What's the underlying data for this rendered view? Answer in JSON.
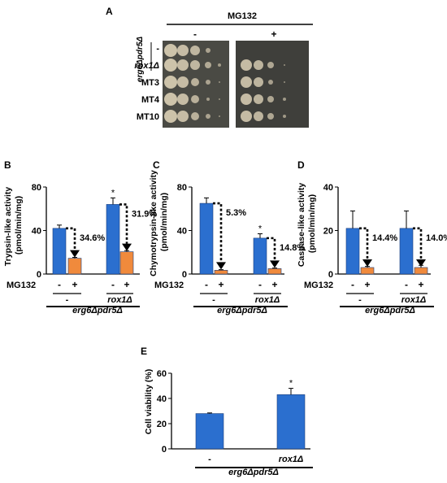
{
  "panels": {
    "A": {
      "letter": "A",
      "treatment_label": "MG132",
      "condition_minus": "-",
      "condition_plus": "+",
      "strain_label": "erg6Δpdr5Δ",
      "rows": [
        "-",
        "rox1Δ",
        "MT3",
        "MT4",
        "MT10"
      ]
    },
    "B": {
      "letter": "B",
      "group_label": "erg6Δpdr5Δ"
    },
    "C": {
      "letter": "C",
      "group_label": "erg6Δpdr5Δ"
    },
    "D": {
      "letter": "D",
      "group_label": "erg6Δpdr5Δ"
    },
    "E": {
      "letter": "E",
      "group_label": "erg6Δpdr5Δ"
    }
  },
  "colors": {
    "minus_bar": "#2b6fcf",
    "plus_bar": "#f08a3c",
    "colony": "#d4c9b0",
    "plate_bg": "#4a4a44"
  },
  "chart_data": [
    {
      "panel": "B",
      "type": "bar",
      "ylabel": "Trypsin-like activity\n(pmol/min/mg)",
      "ylim": [
        0,
        80
      ],
      "yticks": [
        "0",
        "40",
        "80"
      ],
      "xlabel_row": "MG132",
      "categories": [
        "-",
        "+",
        "-",
        "+"
      ],
      "groups": [
        "-",
        "rox1Δ"
      ],
      "values": [
        42,
        14.5,
        64,
        20.5
      ],
      "errors": [
        3,
        0.8,
        6,
        1
      ],
      "colors": [
        "#2b6fcf",
        "#f08a3c",
        "#2b6fcf",
        "#f08a3c"
      ],
      "annotations": [
        "34.6%",
        "31.9%"
      ],
      "stars": [
        2
      ]
    },
    {
      "panel": "C",
      "type": "bar",
      "ylabel": "Chymotrypsin-like activity\n(pmol/min/mg)",
      "ylim": [
        0,
        80
      ],
      "yticks": [
        "0",
        "40",
        "80"
      ],
      "xlabel_row": "MG132",
      "categories": [
        "-",
        "+",
        "-",
        "+"
      ],
      "groups": [
        "-",
        "rox1Δ"
      ],
      "values": [
        65,
        3.5,
        33,
        5
      ],
      "errors": [
        5,
        0.5,
        4,
        0.5
      ],
      "colors": [
        "#2b6fcf",
        "#f08a3c",
        "#2b6fcf",
        "#f08a3c"
      ],
      "annotations": [
        "5.3%",
        "14.8%"
      ],
      "stars": [
        2
      ]
    },
    {
      "panel": "D",
      "type": "bar",
      "ylabel": "Caspase-like activity\n(pmol/min/mg)",
      "ylim": [
        0,
        40
      ],
      "yticks": [
        "0",
        "20",
        "40"
      ],
      "xlabel_row": "MG132",
      "categories": [
        "-",
        "+",
        "-",
        "+"
      ],
      "groups": [
        "-",
        "rox1Δ"
      ],
      "values": [
        21,
        3,
        21,
        3
      ],
      "errors": [
        8,
        0.5,
        8,
        1
      ],
      "colors": [
        "#2b6fcf",
        "#f08a3c",
        "#2b6fcf",
        "#f08a3c"
      ],
      "annotations": [
        "14.4%",
        "14.0%"
      ],
      "stars": []
    },
    {
      "panel": "E",
      "type": "bar",
      "ylabel": "Cell viability (%)",
      "ylim": [
        0,
        60
      ],
      "yticks": [
        "0",
        "20",
        "40",
        "60"
      ],
      "categories": [
        "-",
        "rox1Δ"
      ],
      "values": [
        28,
        43
      ],
      "errors": [
        0.5,
        5
      ],
      "colors": [
        "#2b6fcf",
        "#2b6fcf"
      ],
      "annotations": [],
      "stars": [
        1
      ]
    }
  ]
}
